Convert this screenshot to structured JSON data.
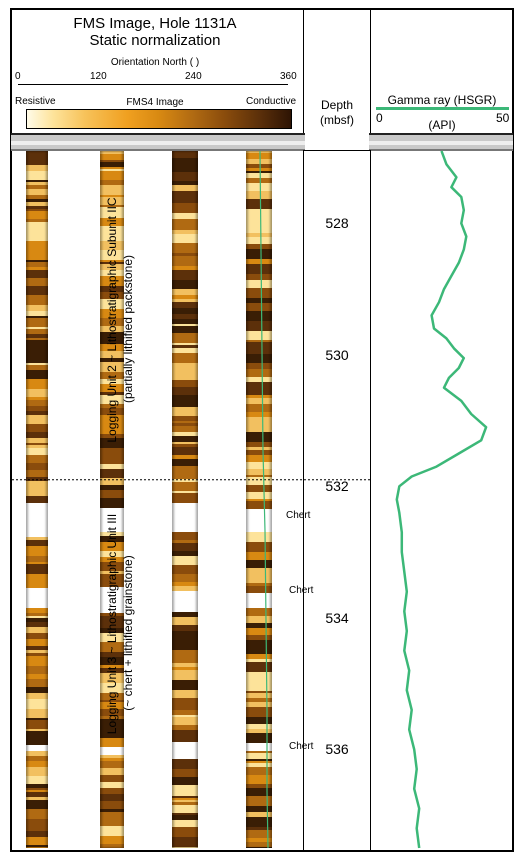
{
  "header": {
    "title_line1": "FMS Image, Hole 1131A",
    "title_line2": "Static normalization",
    "orientation_label": "Orientation North ( )",
    "orientation_ticks": [
      "0",
      "120",
      "240",
      "360"
    ],
    "scale_left": "Resistive",
    "scale_center": "FMS4 Image",
    "scale_right": "Conductive",
    "depth_label_1": "Depth",
    "depth_label_2": "(mbsf)",
    "gamma_label": "Gamma ray (HSGR)",
    "gamma_min": "0",
    "gamma_max": "50",
    "gamma_unit": "(API)"
  },
  "annotations": {
    "unit2_line1": "Logging Unit 2 ~ Lithostratigraphic Subunit IIC",
    "unit2_line2": "(partially lithified packstone)",
    "unit3_line1": "Logging Unit 3 ~ Lithostratigraphic Unit III",
    "unit3_line2": "(~ chert + lithified grainstone)",
    "chert_labels": [
      "Chert",
      "Chert",
      "Chert"
    ]
  },
  "colors": {
    "gamma_line": "#3cb878",
    "image_dark": "#3a1e05",
    "image_mid": "#b06a12",
    "image_light": "#f2c060",
    "white": "#ffffff"
  },
  "chart_data": {
    "type": "line",
    "title": "",
    "xlabel": "Gamma ray (HSGR)",
    "ylabel": "Depth (mbsf)",
    "xlim": [
      0,
      50
    ],
    "ylim": [
      526.9,
      537.5
    ],
    "depth_ticks": [
      528,
      530,
      532,
      534,
      536
    ],
    "unit_boundary_depth": 531.9,
    "series": [
      {
        "name": "Gamma ray (HSGR)",
        "points": [
          [
            526.9,
            26
          ],
          [
            527.1,
            28
          ],
          [
            527.3,
            32
          ],
          [
            527.45,
            30
          ],
          [
            527.6,
            34
          ],
          [
            527.8,
            35
          ],
          [
            528.0,
            34
          ],
          [
            528.2,
            36
          ],
          [
            528.4,
            35
          ],
          [
            528.6,
            33
          ],
          [
            528.8,
            30
          ],
          [
            529.0,
            27
          ],
          [
            529.2,
            25
          ],
          [
            529.4,
            22
          ],
          [
            529.6,
            23
          ],
          [
            529.75,
            28
          ],
          [
            529.9,
            31
          ],
          [
            530.05,
            35
          ],
          [
            530.2,
            33
          ],
          [
            530.35,
            29
          ],
          [
            530.5,
            27
          ],
          [
            530.7,
            34
          ],
          [
            530.9,
            38
          ],
          [
            531.1,
            44
          ],
          [
            531.3,
            42
          ],
          [
            531.5,
            33
          ],
          [
            531.7,
            24
          ],
          [
            531.85,
            14
          ],
          [
            532.0,
            9
          ],
          [
            532.2,
            8
          ],
          [
            532.4,
            9
          ],
          [
            532.7,
            10
          ],
          [
            533.0,
            10
          ],
          [
            533.3,
            11
          ],
          [
            533.6,
            12
          ],
          [
            533.9,
            11
          ],
          [
            534.2,
            12
          ],
          [
            534.5,
            11
          ],
          [
            534.8,
            13
          ],
          [
            535.1,
            12
          ],
          [
            535.4,
            14
          ],
          [
            535.7,
            13
          ],
          [
            536.0,
            15
          ],
          [
            536.3,
            16
          ],
          [
            536.6,
            15
          ],
          [
            536.9,
            17
          ],
          [
            537.2,
            16
          ],
          [
            537.5,
            17
          ]
        ]
      }
    ]
  }
}
